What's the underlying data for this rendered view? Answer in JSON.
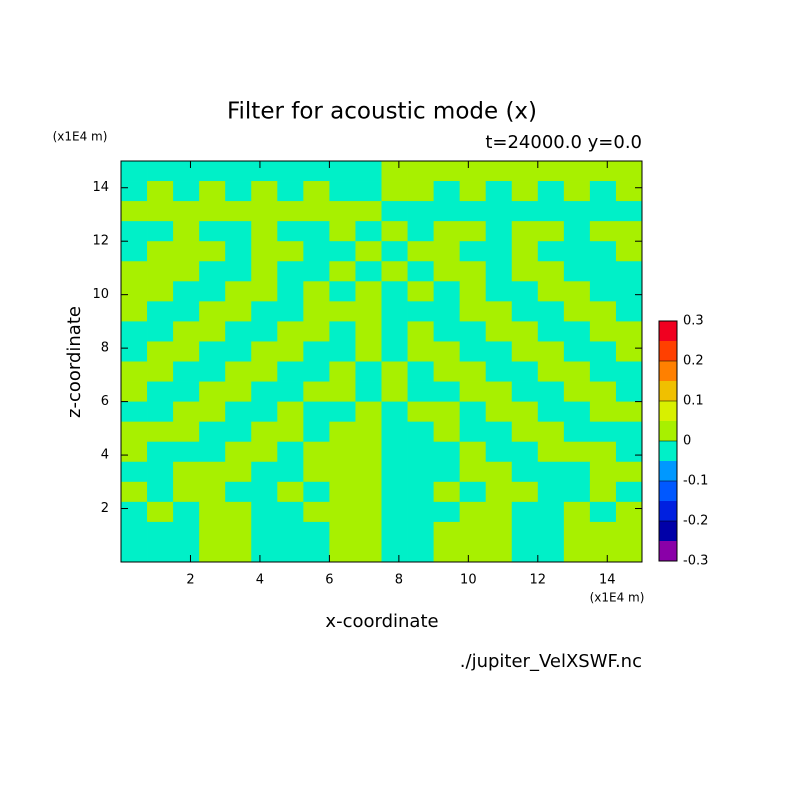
{
  "chart_data": {
    "type": "contour",
    "title": "Filter for acoustic mode (x)",
    "subtitle": "t=24000.0 y=0.0",
    "xlabel": "x-coordinate",
    "ylabel": "z-coordinate",
    "x_unit": "(x1E4 m)",
    "y_unit": "(x1E4 m)",
    "source": "./jupiter_VelXSWF.nc",
    "xlim": [
      0,
      15
    ],
    "ylim": [
      0,
      15
    ],
    "xticks": [
      2,
      4,
      6,
      8,
      10,
      12,
      14
    ],
    "yticks": [
      2,
      4,
      6,
      8,
      10,
      12,
      14
    ],
    "x": [
      0.375,
      1.125,
      1.875,
      2.625,
      3.375,
      4.125,
      4.875,
      5.625,
      6.375,
      7.125,
      7.875,
      8.625,
      9.375,
      10.125,
      10.875,
      11.625,
      12.375,
      13.125,
      13.875,
      14.625
    ],
    "z": [
      14.625,
      13.875,
      13.125,
      12.375,
      11.625,
      10.875,
      10.125,
      9.375,
      8.625,
      7.875,
      7.125,
      6.375,
      5.625,
      4.875,
      4.125,
      3.375,
      2.625,
      1.875,
      1.125,
      0.375
    ],
    "values": [
      [
        -0.02,
        -0.02,
        -0.02,
        -0.02,
        -0.02,
        -0.02,
        -0.02,
        -0.02,
        -0.02,
        -0.02,
        0.02,
        0.02,
        0.02,
        0.02,
        0.02,
        0.02,
        0.02,
        0.02,
        0.02,
        0.02
      ],
      [
        -0.02,
        0.02,
        -0.02,
        0.02,
        -0.02,
        0.02,
        -0.02,
        0.02,
        -0.02,
        -0.02,
        0.02,
        0.02,
        -0.02,
        0.02,
        -0.02,
        0.02,
        -0.02,
        0.02,
        -0.02,
        0.02
      ],
      [
        0.02,
        0.02,
        0.02,
        0.02,
        0.02,
        0.02,
        0.02,
        0.02,
        0.02,
        0.02,
        -0.02,
        -0.02,
        -0.02,
        -0.02,
        -0.02,
        -0.02,
        -0.02,
        -0.02,
        -0.02,
        -0.02
      ],
      [
        -0.02,
        -0.02,
        0.02,
        -0.02,
        -0.02,
        0.02,
        -0.02,
        -0.02,
        0.02,
        -0.02,
        0.02,
        -0.02,
        0.02,
        0.02,
        -0.02,
        0.02,
        0.02,
        -0.02,
        0.02,
        0.02
      ],
      [
        -0.02,
        0.02,
        0.02,
        0.02,
        -0.02,
        0.02,
        0.02,
        -0.02,
        -0.02,
        0.02,
        -0.02,
        0.02,
        0.02,
        -0.02,
        -0.02,
        0.02,
        -0.02,
        -0.02,
        -0.02,
        0.02
      ],
      [
        0.02,
        0.02,
        0.02,
        -0.02,
        -0.02,
        0.02,
        -0.02,
        -0.02,
        0.02,
        -0.02,
        0.02,
        -0.02,
        0.02,
        0.02,
        -0.02,
        0.02,
        0.02,
        -0.02,
        -0.02,
        -0.02
      ],
      [
        0.02,
        0.02,
        -0.02,
        -0.02,
        0.02,
        0.02,
        -0.02,
        0.02,
        -0.02,
        0.02,
        -0.02,
        0.02,
        -0.02,
        0.02,
        -0.02,
        -0.02,
        0.02,
        0.02,
        -0.02,
        -0.02
      ],
      [
        0.02,
        -0.02,
        -0.02,
        0.02,
        0.02,
        -0.02,
        -0.02,
        0.02,
        0.02,
        0.02,
        -0.02,
        -0.02,
        -0.02,
        0.02,
        0.02,
        -0.02,
        -0.02,
        0.02,
        0.02,
        -0.02
      ],
      [
        -0.02,
        -0.02,
        0.02,
        0.02,
        -0.02,
        -0.02,
        0.02,
        0.02,
        -0.02,
        0.02,
        -0.02,
        0.02,
        -0.02,
        -0.02,
        0.02,
        0.02,
        -0.02,
        -0.02,
        0.02,
        0.02
      ],
      [
        -0.02,
        0.02,
        0.02,
        -0.02,
        -0.02,
        0.02,
        0.02,
        -0.02,
        -0.02,
        0.02,
        -0.02,
        0.02,
        0.02,
        -0.02,
        -0.02,
        0.02,
        0.02,
        -0.02,
        -0.02,
        0.02
      ],
      [
        0.02,
        0.02,
        -0.02,
        -0.02,
        0.02,
        0.02,
        -0.02,
        -0.02,
        0.02,
        -0.02,
        0.02,
        -0.02,
        0.02,
        0.02,
        -0.02,
        -0.02,
        0.02,
        0.02,
        -0.02,
        -0.02
      ],
      [
        0.02,
        -0.02,
        -0.02,
        0.02,
        0.02,
        -0.02,
        -0.02,
        0.02,
        0.02,
        -0.02,
        0.02,
        -0.02,
        -0.02,
        0.02,
        0.02,
        -0.02,
        -0.02,
        0.02,
        0.02,
        -0.02
      ],
      [
        -0.02,
        -0.02,
        0.02,
        0.02,
        -0.02,
        -0.02,
        0.02,
        -0.02,
        -0.02,
        0.02,
        -0.02,
        0.02,
        0.02,
        -0.02,
        0.02,
        0.02,
        -0.02,
        -0.02,
        0.02,
        0.02
      ],
      [
        0.02,
        0.02,
        0.02,
        -0.02,
        -0.02,
        0.02,
        0.02,
        -0.02,
        0.02,
        0.02,
        -0.02,
        -0.02,
        0.02,
        -0.02,
        -0.02,
        0.02,
        0.02,
        -0.02,
        -0.02,
        -0.02
      ],
      [
        0.02,
        -0.02,
        -0.02,
        -0.02,
        0.02,
        0.02,
        -0.02,
        0.02,
        0.02,
        0.02,
        -0.02,
        -0.02,
        -0.02,
        0.02,
        -0.02,
        -0.02,
        0.02,
        0.02,
        0.02,
        -0.02
      ],
      [
        -0.02,
        -0.02,
        0.02,
        0.02,
        0.02,
        -0.02,
        -0.02,
        0.02,
        0.02,
        0.02,
        -0.02,
        -0.02,
        -0.02,
        0.02,
        0.02,
        -0.02,
        -0.02,
        -0.02,
        0.02,
        0.02
      ],
      [
        0.02,
        -0.02,
        0.02,
        0.02,
        -0.02,
        -0.02,
        0.02,
        -0.02,
        0.02,
        0.02,
        -0.02,
        -0.02,
        0.02,
        -0.02,
        0.02,
        0.02,
        -0.02,
        -0.02,
        0.02,
        -0.02
      ],
      [
        -0.02,
        0.02,
        -0.02,
        0.02,
        0.02,
        -0.02,
        -0.02,
        0.02,
        0.02,
        0.02,
        -0.02,
        -0.02,
        -0.02,
        0.02,
        0.02,
        -0.02,
        -0.02,
        0.02,
        -0.02,
        0.02
      ],
      [
        -0.02,
        -0.02,
        -0.02,
        0.02,
        0.02,
        -0.02,
        -0.02,
        -0.02,
        0.02,
        0.02,
        -0.02,
        -0.02,
        0.02,
        0.02,
        0.02,
        -0.02,
        -0.02,
        0.02,
        0.02,
        0.02
      ],
      [
        -0.02,
        -0.02,
        -0.02,
        0.02,
        0.02,
        -0.02,
        -0.02,
        -0.02,
        0.02,
        0.02,
        -0.02,
        -0.02,
        0.02,
        0.02,
        0.02,
        -0.02,
        -0.02,
        0.02,
        0.02,
        0.02
      ]
    ],
    "levels": [
      -0.3,
      -0.25,
      -0.2,
      -0.15,
      -0.1,
      -0.05,
      0,
      0.05,
      0.1,
      0.15,
      0.2,
      0.25,
      0.3
    ],
    "colors": [
      "#8a00a8",
      "#0000a8",
      "#0020e0",
      "#0058ff",
      "#0098ff",
      "#00f0c8",
      "#a8f000",
      "#d8f000",
      "#f0c000",
      "#ff8000",
      "#ff4000",
      "#f00020"
    ],
    "overflow_color": "#ffa8a8",
    "colorbar_ticks": [
      0.3,
      0.2,
      0.1,
      0,
      -0.1,
      -0.2,
      -0.3
    ]
  }
}
